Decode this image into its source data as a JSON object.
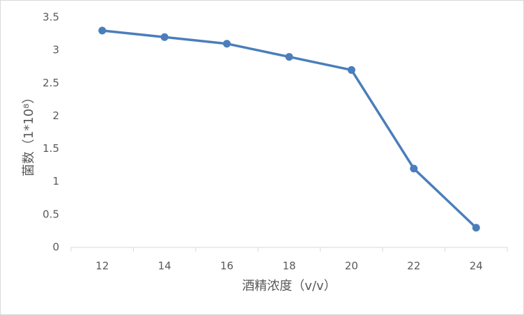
{
  "chart_data": {
    "type": "line",
    "x_label": "酒精浓度（v/v）",
    "y_label": "菌数（1*10⁸）",
    "categories": [
      "12",
      "14",
      "16",
      "18",
      "20",
      "22",
      "24"
    ],
    "series": [
      {
        "color": "#4a7ebb",
        "values": [
          3.3,
          3.2,
          3.1,
          2.9,
          2.7,
          1.2,
          0.3
        ]
      }
    ],
    "ylim": [
      0,
      3.5
    ],
    "yticks": [
      0,
      0.5,
      1,
      1.5,
      2,
      2.5,
      3,
      3.5
    ],
    "grid": false
  }
}
